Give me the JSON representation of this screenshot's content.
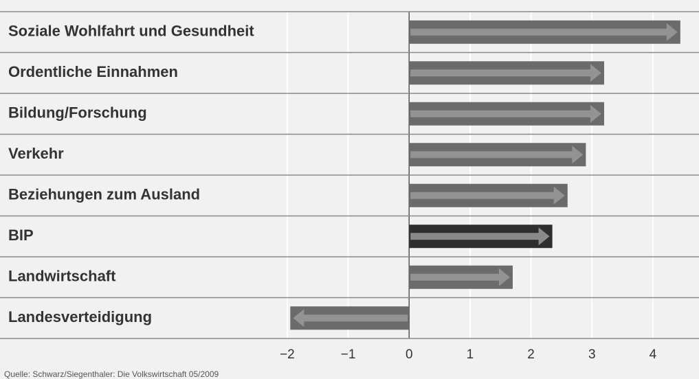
{
  "chart_data": {
    "type": "hbar",
    "categories": [
      "Soziale Wohlfahrt und Gesundheit",
      "Ordentliche Einnahmen",
      "Bildung/Forschung",
      "Verkehr",
      "Beziehungen zum Ausland",
      "BIP",
      "Landwirtschaft",
      "Landesverteidigung"
    ],
    "values": [
      4.45,
      3.2,
      3.2,
      2.9,
      2.6,
      2.35,
      1.7,
      -1.95
    ],
    "colors": [
      "#6b6b6b",
      "#6b6b6b",
      "#6b6b6b",
      "#6b6b6b",
      "#6b6b6b",
      "#2e2e2e",
      "#6b6b6b",
      "#6b6b6b"
    ],
    "xlim": [
      -6.6,
      4.7
    ],
    "xticks": [
      {
        "value": -2,
        "label": "−2"
      },
      {
        "value": -1,
        "label": "−1"
      },
      0,
      1,
      2,
      3,
      4
    ],
    "grid": true,
    "source": "Quelle: Schwarz/Siegenthaler: Die Volkswirtschaft 05/2009"
  }
}
